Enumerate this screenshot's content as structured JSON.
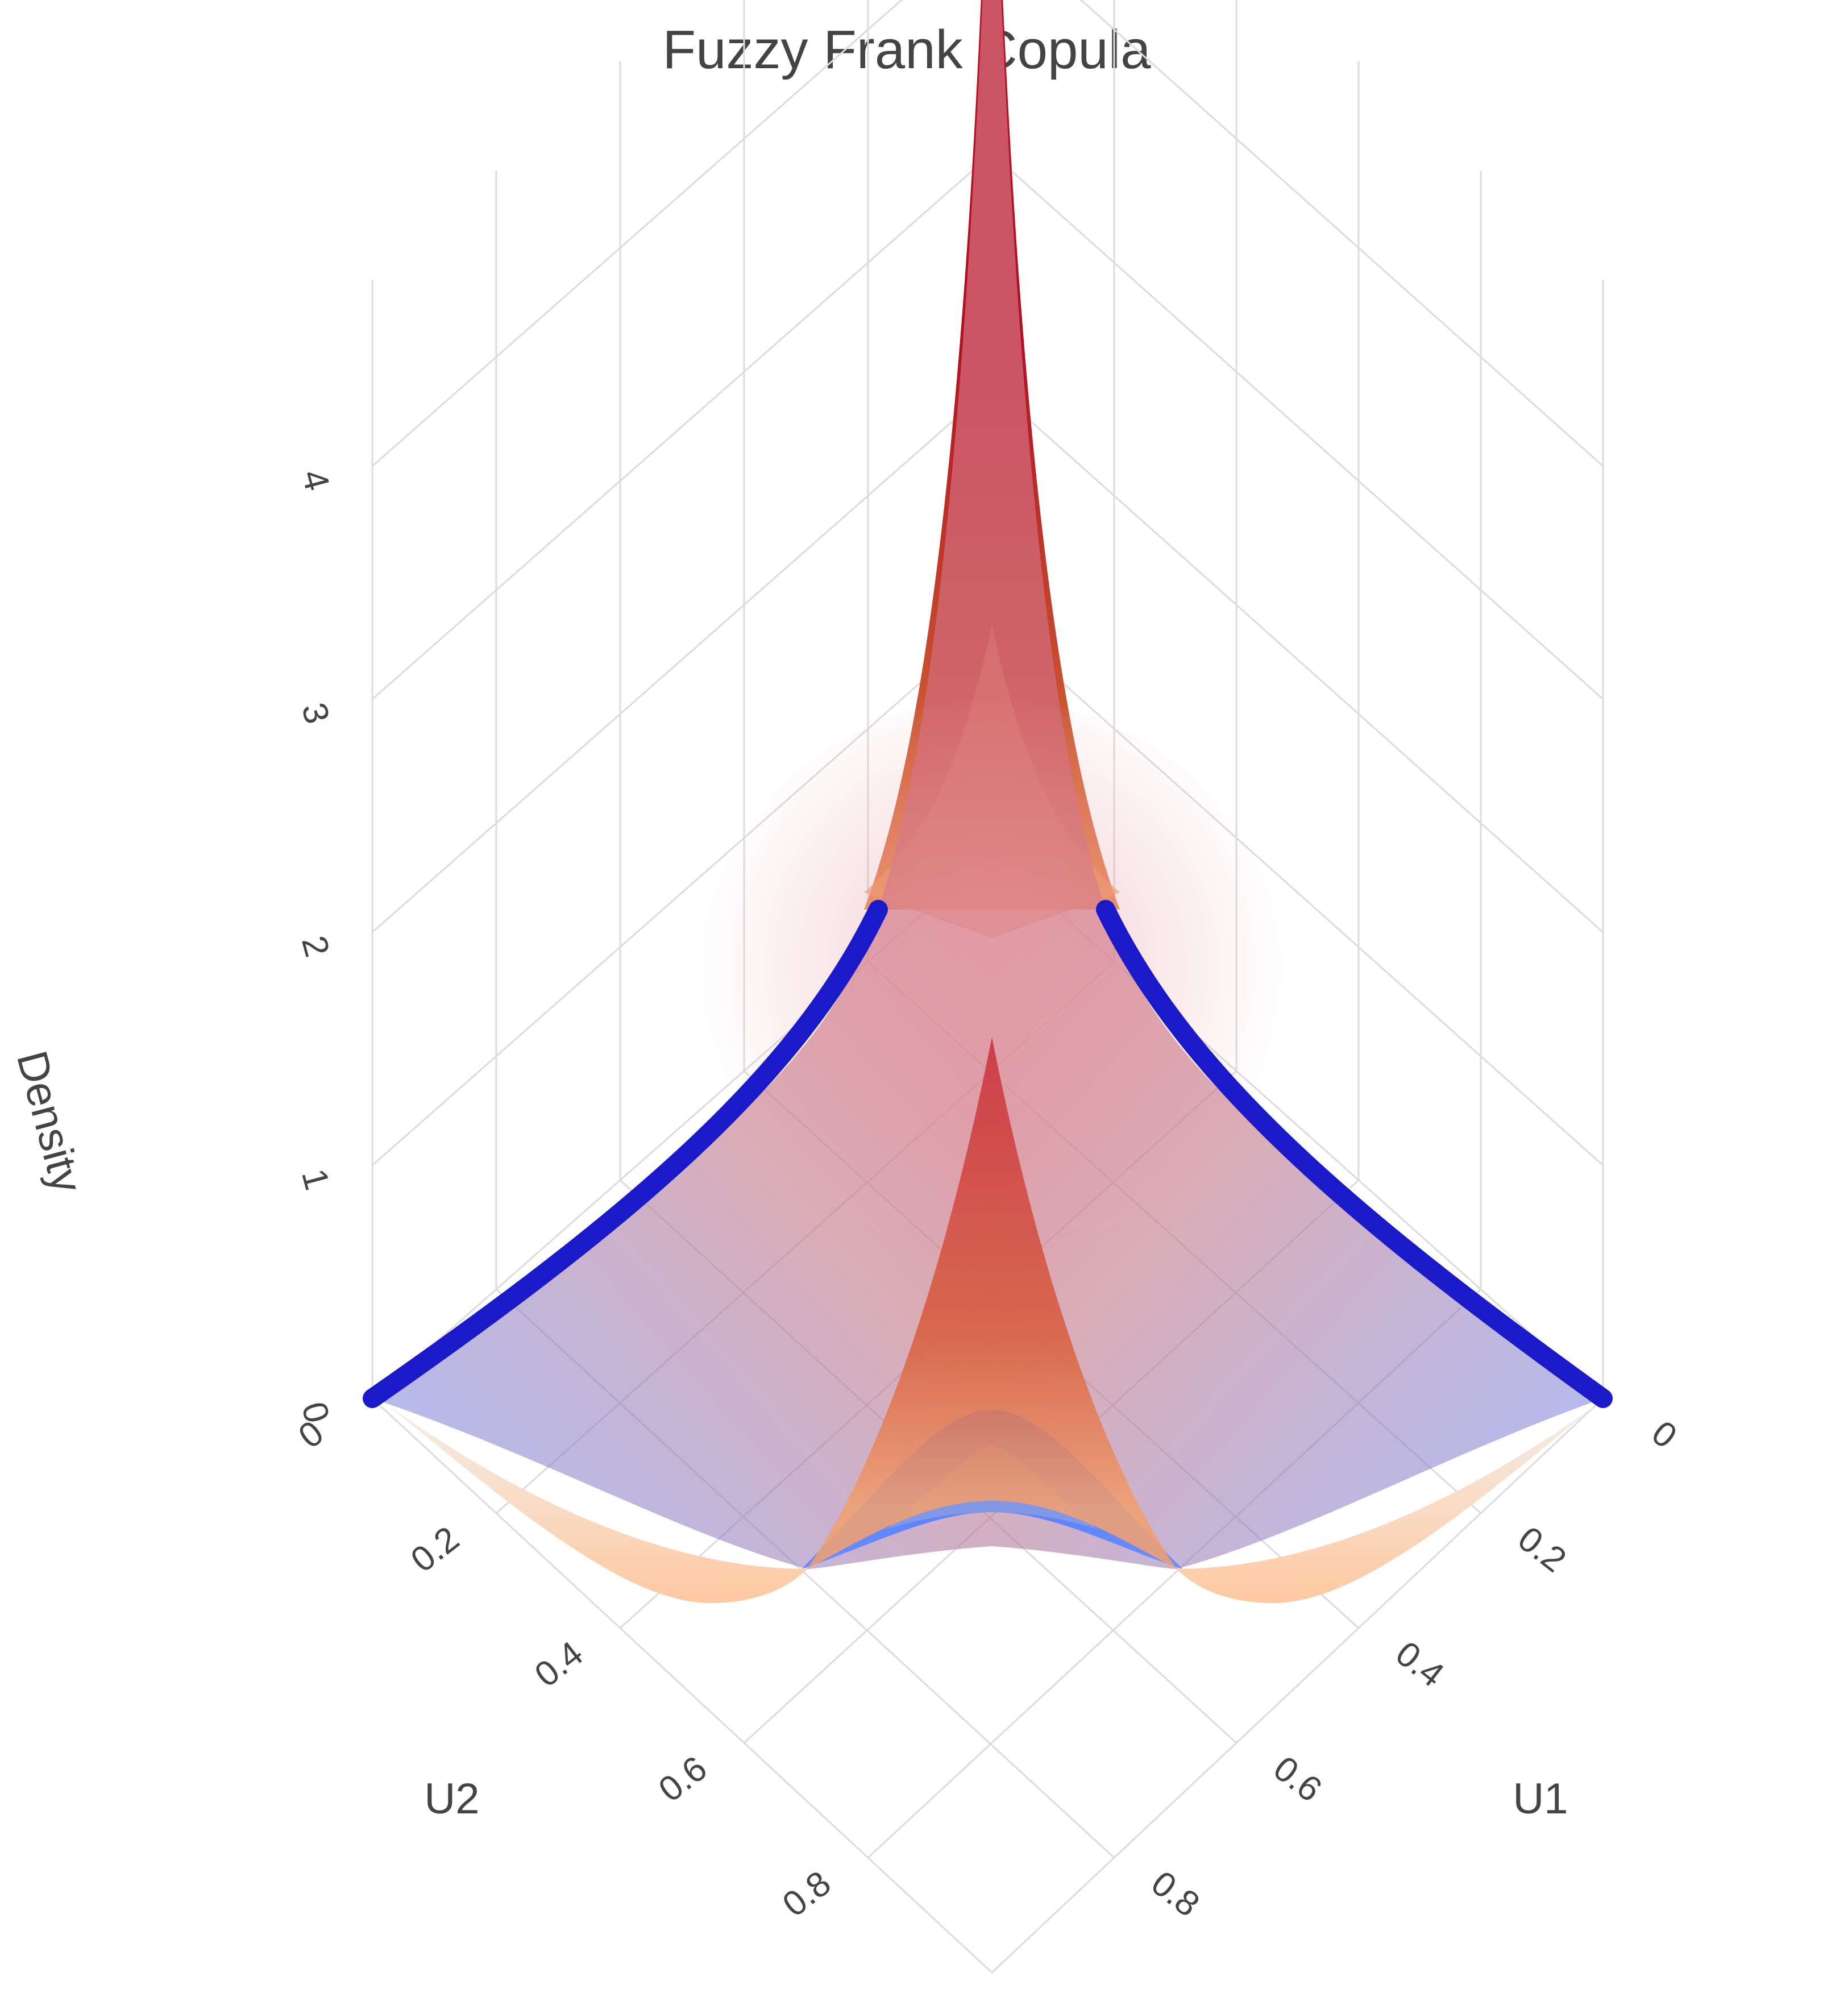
{
  "chart_data": {
    "type": "surface",
    "title": "Fuzzy Frank Copula",
    "axes": {
      "x": {
        "label": "U1",
        "range": [
          0,
          1
        ],
        "ticks": [
          "0",
          "0.2",
          "0.4",
          "0.6",
          "0.8"
        ],
        "tick_values": [
          0,
          0.2,
          0.4,
          0.6,
          0.8
        ]
      },
      "y": {
        "label": "U2",
        "range": [
          0,
          1
        ],
        "ticks": [
          "0",
          "0.2",
          "0.4",
          "0.6",
          "0.8"
        ],
        "tick_values": [
          0,
          0.2,
          0.4,
          0.6,
          0.8
        ]
      },
      "z": {
        "label": "Density",
        "range": [
          0,
          4.8
        ],
        "ticks": [
          "0",
          "1",
          "2",
          "3",
          "4"
        ],
        "tick_values": [
          0,
          1,
          2,
          3,
          4
        ]
      }
    },
    "grid": true,
    "series": [
      {
        "role": "upper",
        "colorscale": [
          "#1a1ac0",
          "#f0a070",
          "#b01020"
        ],
        "opacity": 0.45,
        "peak_density": 4.75,
        "diagonal_min_density": 2.3,
        "edge_density": 0.9
      },
      {
        "role": "lower",
        "colorscale": [
          "#3366ff",
          "#f5a070",
          "#b01020"
        ],
        "opacity": 0.8,
        "peak_density": 3.9,
        "diagonal_min_density": 0.2,
        "edge_density": 0.0
      }
    ]
  },
  "colors": {
    "upper_edge": "#1a1ac8",
    "lower_edge": "#3d6cff",
    "peak": "#b01020",
    "warm": "#f0a070",
    "grid": "#dcdcdc",
    "text": "#444444"
  }
}
